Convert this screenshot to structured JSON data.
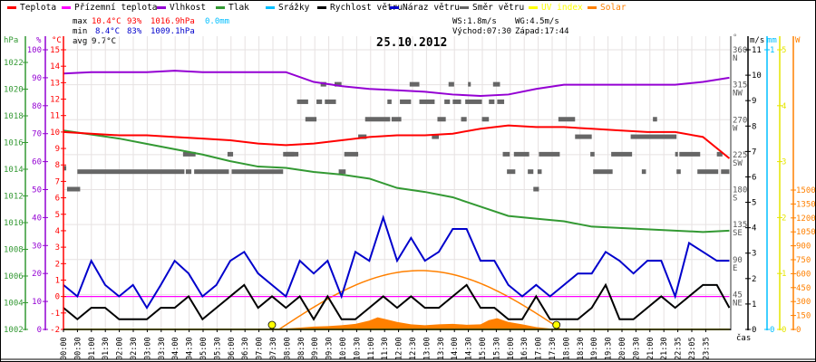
{
  "legend": [
    {
      "label": "Teplota",
      "color": "#ff0000"
    },
    {
      "label": "Přízemní teplota",
      "color": "#ff00ff"
    },
    {
      "label": "Vlhkost",
      "color": "#9400d3"
    },
    {
      "label": "Tlak",
      "color": "#339933"
    },
    {
      "label": "Srážky",
      "color": "#00bfff"
    },
    {
      "label": "Rychlost větru",
      "color": "#000000"
    },
    {
      "label": "Náraz větru",
      "color": "#0000cc"
    },
    {
      "label": "Směr větru",
      "color": "#666666"
    },
    {
      "label": "UV index",
      "color": "#ffff00"
    },
    {
      "label": "Solar",
      "color": "#ff8000"
    }
  ],
  "stats": {
    "max_label": "max",
    "max_temp": "10.4°C",
    "max_hum": "93%",
    "max_press": "1016.9hPa",
    "max_rain": "0.0mm",
    "min_label": "min",
    "min_temp": "8.4°C",
    "min_hum": "83%",
    "min_press": "1009.1hPa",
    "avg_label": "avg",
    "avg_temp": "9.7°C",
    "ws": "WS:1.8m/s",
    "wg": "WG:4.5m/s",
    "sunrise": "Východ:07:30",
    "sunset": "Západ:17:44"
  },
  "chart_data": {
    "type": "line",
    "title": "25.10.2012",
    "xlabel": "čas",
    "x_ticks": [
      "00:00",
      "00:30",
      "01:00",
      "01:30",
      "02:00",
      "02:30",
      "03:00",
      "03:30",
      "04:00",
      "04:30",
      "05:00",
      "05:30",
      "06:00",
      "06:30",
      "07:00",
      "07:30",
      "08:00",
      "08:30",
      "09:00",
      "09:30",
      "10:00",
      "10:30",
      "11:00",
      "11:30",
      "12:00",
      "12:30",
      "13:00",
      "13:30",
      "14:00",
      "14:30",
      "15:00",
      "15:30",
      "16:00",
      "16:30",
      "17:00",
      "17:30",
      "18:00",
      "18:30",
      "19:00",
      "19:30",
      "20:00",
      "20:30",
      "21:00",
      "21:30",
      "22:35",
      "23:05",
      "23:35"
    ],
    "axes": {
      "pressure": {
        "unit": "hPa",
        "range": [
          1002,
          1023
        ],
        "ticks": [
          "1002",
          "1004",
          "1006",
          "1008",
          "1010",
          "1012",
          "1014",
          "1016",
          "1018",
          "1020",
          "1022"
        ]
      },
      "humidity": {
        "unit": "%",
        "range": [
          0,
          100
        ],
        "ticks": [
          "0",
          "10",
          "20",
          "30",
          "40",
          "50",
          "60",
          "70",
          "80",
          "90",
          "100"
        ]
      },
      "temperature": {
        "unit": "°C",
        "range": [
          -2,
          15
        ],
        "ticks": [
          "-2",
          "-1",
          "0",
          "1",
          "2",
          "3",
          "4",
          "5",
          "6",
          "7",
          "8",
          "9",
          "10",
          "11",
          "12",
          "13",
          "14",
          "15"
        ]
      },
      "direction": {
        "unit": "°",
        "range": [
          0,
          360
        ],
        "ticks": [
          {
            "v": "45",
            "d": "NE"
          },
          {
            "v": "90",
            "d": "E"
          },
          {
            "v": "135",
            "d": "SE"
          },
          {
            "v": "180",
            "d": "S"
          },
          {
            "v": "225",
            "d": "SW"
          },
          {
            "v": "270",
            "d": "W"
          },
          {
            "v": "315",
            "d": "NW"
          },
          {
            "v": "360",
            "d": "N"
          }
        ]
      },
      "wind": {
        "unit": "m/s",
        "range": [
          0,
          11
        ],
        "ticks": [
          "0",
          "1",
          "2",
          "3",
          "4",
          "5",
          "6",
          "7",
          "8",
          "9",
          "10",
          "11"
        ]
      },
      "rain": {
        "unit": "mm",
        "range": [
          0,
          1
        ],
        "ticks": [
          "0",
          "1"
        ]
      },
      "uv": {
        "unit": "",
        "range": [
          0,
          5
        ],
        "ticks": [
          "0",
          "1",
          "2",
          "3",
          "4",
          "5"
        ]
      },
      "solar": {
        "unit": "W",
        "range": [
          0,
          1500
        ],
        "ticks": [
          "0",
          "150",
          "300",
          "450",
          "600",
          "750",
          "900",
          "1050",
          "1200",
          "1350",
          "1500"
        ]
      }
    },
    "series": {
      "temperature": {
        "x_hours": [
          0,
          1,
          2,
          3,
          4,
          5,
          6,
          7,
          8,
          9,
          10,
          11,
          12,
          13,
          14,
          15,
          16,
          17,
          18,
          19,
          20,
          21,
          22,
          23,
          23.95
        ],
        "values": [
          10.0,
          9.9,
          9.8,
          9.8,
          9.7,
          9.6,
          9.5,
          9.3,
          9.2,
          9.3,
          9.5,
          9.7,
          9.8,
          9.8,
          9.9,
          10.2,
          10.4,
          10.3,
          10.3,
          10.2,
          10.1,
          10.0,
          10.0,
          9.7,
          8.4
        ]
      },
      "dew_point": {
        "x_hours": [
          0,
          23.95
        ],
        "values": [
          0,
          0
        ]
      },
      "humidity": {
        "x_hours": [
          0,
          1,
          2,
          3,
          4,
          5,
          6,
          7,
          8,
          9,
          10,
          11,
          12,
          13,
          14,
          15,
          16,
          17,
          18,
          19,
          20,
          21,
          22,
          23,
          23.95
        ],
        "values": [
          91.5,
          92,
          92,
          92,
          92.5,
          92,
          92,
          92,
          92,
          88.5,
          87,
          86,
          85.5,
          85,
          84,
          83.5,
          84,
          86,
          87.5,
          87.5,
          87.5,
          87.5,
          87.5,
          88.5,
          90
        ]
      },
      "pressure": {
        "x_hours": [
          0,
          1,
          2,
          3,
          4,
          5,
          6,
          7,
          8,
          9,
          10,
          11,
          12,
          13,
          14,
          15,
          16,
          17,
          18,
          19,
          20,
          21,
          22,
          23,
          23.95
        ],
        "values": [
          1016.9,
          1016.6,
          1016.3,
          1015.9,
          1015.5,
          1015.1,
          1014.6,
          1014.2,
          1014.1,
          1013.8,
          1013.6,
          1013.3,
          1012.6,
          1012.3,
          1011.9,
          1011.2,
          1010.5,
          1010.3,
          1010.1,
          1009.7,
          1009.6,
          1009.5,
          1009.4,
          1009.3,
          1009.4
        ]
      },
      "wind_speed": {
        "step_hours": 0.5,
        "values": [
          0.85,
          0.4,
          0.85,
          0.85,
          0.4,
          0.4,
          0.4,
          0.85,
          0.85,
          1.3,
          0.4,
          0.85,
          1.3,
          1.75,
          0.85,
          1.3,
          0.85,
          1.3,
          0.4,
          1.3,
          0.4,
          0.4,
          0.85,
          1.3,
          0.85,
          1.3,
          0.85,
          0.85,
          1.3,
          1.75,
          0.85,
          0.85,
          0.4,
          0.4,
          1.3,
          0.4,
          0.4,
          0.4,
          0.85,
          1.75,
          0.4,
          0.4,
          0.85,
          1.3,
          0.85,
          1.3,
          1.75,
          1.75,
          0.85
        ]
      },
      "wind_gust": {
        "step_hours": 0.5,
        "values": [
          1.75,
          1.3,
          2.7,
          1.75,
          1.3,
          1.75,
          0.85,
          1.75,
          2.7,
          2.2,
          1.3,
          1.75,
          2.7,
          3.05,
          2.2,
          1.75,
          1.3,
          2.7,
          2.2,
          2.7,
          1.3,
          3.05,
          2.7,
          4.4,
          2.7,
          3.6,
          2.7,
          3.05,
          3.95,
          3.95,
          2.7,
          2.7,
          1.75,
          1.3,
          1.75,
          1.3,
          1.75,
          2.2,
          2.2,
          3.05,
          2.7,
          2.2,
          2.7,
          2.7,
          1.3,
          3.4,
          3.05,
          2.7,
          2.7
        ]
      },
      "wind_direction": [
        [
          0,
          0.1,
          207
        ],
        [
          0.13,
          0.6,
          180
        ],
        [
          0.5,
          4.35,
          202.5
        ],
        [
          4.4,
          4.6,
          202.5
        ],
        [
          4.3,
          4.75,
          225
        ],
        [
          4.7,
          5.95,
          202.5
        ],
        [
          5.9,
          6.1,
          225
        ],
        [
          6.05,
          7.9,
          202.5
        ],
        [
          7.9,
          8.3,
          225
        ],
        [
          8.0,
          8.45,
          225
        ],
        [
          8.4,
          8.8,
          292.5
        ],
        [
          8.7,
          9.1,
          270
        ],
        [
          9.1,
          9.3,
          292.5
        ],
        [
          9.25,
          9.45,
          315
        ],
        [
          9.4,
          9.8,
          292.5
        ],
        [
          9.75,
          10.0,
          315
        ],
        [
          9.9,
          10.15,
          202.5
        ],
        [
          10.1,
          10.6,
          225
        ],
        [
          10.6,
          10.9,
          247.5
        ],
        [
          10.85,
          11.75,
          270
        ],
        [
          11.65,
          11.8,
          292.5
        ],
        [
          11.8,
          12.15,
          270
        ],
        [
          12.1,
          12.5,
          292.5
        ],
        [
          12.45,
          12.8,
          315
        ],
        [
          12.8,
          13.35,
          292.5
        ],
        [
          13.25,
          13.5,
          247.5
        ],
        [
          13.45,
          13.75,
          270
        ],
        [
          13.7,
          13.9,
          292.5
        ],
        [
          13.85,
          14.05,
          315
        ],
        [
          14.0,
          14.3,
          292.5
        ],
        [
          14.3,
          14.5,
          270
        ],
        [
          14.45,
          15.05,
          292.5
        ],
        [
          14.55,
          14.65,
          315
        ],
        [
          15.05,
          15.3,
          270
        ],
        [
          15.3,
          15.5,
          292.5
        ],
        [
          15.45,
          15.7,
          315
        ],
        [
          15.6,
          15.85,
          292.5
        ],
        [
          15.8,
          16.05,
          225
        ],
        [
          15.95,
          16.25,
          202.5
        ],
        [
          16.2,
          16.75,
          225
        ],
        [
          16.7,
          16.9,
          202.5
        ],
        [
          16.9,
          17.1,
          180
        ],
        [
          17.05,
          17.2,
          202.5
        ],
        [
          17.1,
          17.85,
          225
        ],
        [
          17.8,
          18.4,
          270
        ],
        [
          18.4,
          19.0,
          247.5
        ],
        [
          18.95,
          19.1,
          225
        ],
        [
          19.05,
          19.75,
          202.5
        ],
        [
          19.7,
          20.45,
          225
        ],
        [
          20.4,
          22.05,
          247.5
        ],
        [
          20.8,
          20.95,
          202.5
        ],
        [
          21.2,
          21.35,
          270
        ],
        [
          22.0,
          22.1,
          225
        ],
        [
          22.05,
          22.2,
          202.5
        ],
        [
          22.15,
          22.9,
          225
        ],
        [
          22.8,
          23.55,
          202.5
        ],
        [
          23.5,
          23.7,
          225
        ],
        [
          23.65,
          23.95,
          202.5
        ]
      ],
      "uv_index": {
        "x_hours": [
          0,
          23.95
        ],
        "values": [
          0,
          0
        ]
      },
      "rain": {
        "x_hours": [
          0,
          23.95
        ],
        "values": [
          0,
          0
        ]
      },
      "solar_actual": {
        "x_hours": [
          7.6,
          8,
          8.5,
          9,
          9.5,
          10,
          10.5,
          11,
          11.3,
          11.6,
          12,
          12.5,
          13,
          13.5,
          14,
          14.5,
          15,
          15.3,
          15.6,
          16,
          16.5,
          17,
          17.5,
          17.8
        ],
        "values": [
          0,
          10,
          20,
          30,
          35,
          45,
          60,
          95,
          130,
          110,
          80,
          55,
          45,
          55,
          60,
          50,
          55,
          100,
          120,
          80,
          55,
          25,
          10,
          0
        ]
      },
      "solar_theoretical": {
        "x_hours": [
          7.75,
          17.9
        ],
        "peak_hours": 12.8,
        "peak": 633
      },
      "sun_markers": [
        {
          "label": "sunrise",
          "hours": 7.5
        },
        {
          "label": "sunset",
          "hours": 17.73
        }
      ]
    }
  }
}
